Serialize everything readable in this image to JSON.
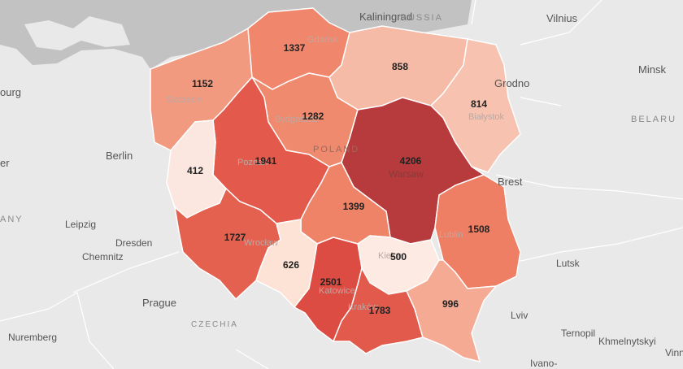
{
  "places": {
    "kaliningrad": "Kaliningrad",
    "russia": "RUSSIA",
    "vilnius": "Vilnius",
    "minsk": "Minsk",
    "belarus": "BELARU",
    "gdansk": "Gdańsk",
    "szczecin": "Szczecin",
    "bydgoszcz": "Bydgoszcz",
    "grodno": "Grodno",
    "bialystok": "Białystok",
    "poland": "POLAND",
    "warsaw": "Warsaw",
    "poznan": "Poznań",
    "brest": "Brest",
    "berlin": "Berlin",
    "burg": "ourg",
    "er": "er",
    "any": "ANY",
    "leipzig": "Leipzig",
    "dresden": "Dresden",
    "chemnitz": "Chemnitz",
    "wroclaw": "Wrocław",
    "lublin": "Lublin",
    "kielce": "Kielce",
    "lutsk": "Lutsk",
    "prague": "Prague",
    "czechia": "CZECHIA",
    "katowice": "Katowice",
    "krakow": "Kraków",
    "lviv": "Lviv",
    "nuremberg": "Nuremberg",
    "ternopil": "Ternopil",
    "khmelnytskyi": "Khmelnytskyi",
    "ivano": "Ivano-",
    "vinn": "Vinn"
  },
  "regions": [
    {
      "id": "zachodniopomorskie",
      "value": "1152",
      "color": "#f29a80"
    },
    {
      "id": "pomorskie",
      "value": "1337",
      "color": "#f0866b"
    },
    {
      "id": "warminsko-mazurskie",
      "value": "858",
      "color": "#f6bba6"
    },
    {
      "id": "podlaskie",
      "value": "814",
      "color": "#f7c3b0"
    },
    {
      "id": "kujawsko-pomorskie",
      "value": "1282",
      "color": "#f08a6e"
    },
    {
      "id": "wielkopolskie",
      "value": "1941",
      "color": "#e35a4c"
    },
    {
      "id": "lubuskie",
      "value": "412",
      "color": "#fbe7df"
    },
    {
      "id": "mazowieckie",
      "value": "4206",
      "color": "#b73a3c"
    },
    {
      "id": "lodzkie",
      "value": "1399",
      "color": "#ef8368"
    },
    {
      "id": "lubelskie",
      "value": "1508",
      "color": "#ef7f64"
    },
    {
      "id": "dolnoslaskie",
      "value": "1727",
      "color": "#e4614f"
    },
    {
      "id": "opolskie",
      "value": "626",
      "color": "#fde2d6"
    },
    {
      "id": "swietokrzyskie",
      "value": "500",
      "color": "#fdeae2"
    },
    {
      "id": "slaskie",
      "value": "2501",
      "color": "#dc4c43"
    },
    {
      "id": "malopolskie",
      "value": "1783",
      "color": "#e15a4b"
    },
    {
      "id": "podkarpackie",
      "value": "996",
      "color": "#f5ab93"
    }
  ]
}
